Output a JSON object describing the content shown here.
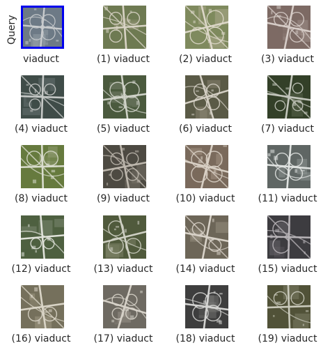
{
  "query_label": "Query",
  "items": [
    {
      "caption": "viaduct",
      "is_query": true,
      "palette": [
        "#6d7a86",
        "#9aa3ab",
        "#c9ccce"
      ]
    },
    {
      "caption": "(1) viaduct",
      "palette": [
        "#6e7a52",
        "#a59f84",
        "#d8d3c5"
      ]
    },
    {
      "caption": "(2) viaduct",
      "palette": [
        "#7f8a5e",
        "#b3ad94",
        "#dcd7c8"
      ]
    },
    {
      "caption": "(3) viaduct",
      "palette": [
        "#7d6a64",
        "#a5948d",
        "#d6ccc7"
      ]
    },
    {
      "caption": "(4) viaduct",
      "palette": [
        "#3f4c48",
        "#6f7a79",
        "#c6c9c7"
      ]
    },
    {
      "caption": "(5) viaduct",
      "palette": [
        "#4b5a3e",
        "#7d8672",
        "#cfd2c8"
      ]
    },
    {
      "caption": "(6) viaduct",
      "palette": [
        "#5a5a46",
        "#918a78",
        "#d4cfc4"
      ]
    },
    {
      "caption": "(7) viaduct",
      "palette": [
        "#334028",
        "#5f6a52",
        "#c3c6bc"
      ]
    },
    {
      "caption": "(8) viaduct",
      "palette": [
        "#667a3e",
        "#9aa27c",
        "#d9dccd"
      ]
    },
    {
      "caption": "(9) viaduct",
      "palette": [
        "#4d4a42",
        "#7d776d",
        "#bdb7ad"
      ]
    },
    {
      "caption": "(10) viaduct",
      "palette": [
        "#7a6a5c",
        "#a8998a",
        "#d8cfc4"
      ]
    },
    {
      "caption": "(11) viaduct",
      "palette": [
        "#5f6664",
        "#959b99",
        "#dfe2e0"
      ]
    },
    {
      "caption": "(12) viaduct",
      "palette": [
        "#4e6040",
        "#86907a",
        "#e0e2da"
      ]
    },
    {
      "caption": "(13) viaduct",
      "palette": [
        "#505a3c",
        "#85896f",
        "#cfd0c4"
      ]
    },
    {
      "caption": "(14) viaduct",
      "palette": [
        "#6d6658",
        "#9e9688",
        "#d8d2c8"
      ]
    },
    {
      "caption": "(15) viaduct",
      "palette": [
        "#3d3c40",
        "#6e6a70",
        "#b8b4b8"
      ]
    },
    {
      "caption": "(16) viaduct",
      "palette": [
        "#75705c",
        "#a8a18c",
        "#d9d4c6"
      ]
    },
    {
      "caption": "(17) viaduct",
      "palette": [
        "#6e6a62",
        "#a09a90",
        "#d6d1c8"
      ]
    },
    {
      "caption": "(18) viaduct",
      "palette": [
        "#3e3e3e",
        "#7a7a78",
        "#d4d4d2"
      ]
    },
    {
      "caption": "(19) viaduct",
      "palette": [
        "#515238",
        "#86866e",
        "#cacabc"
      ]
    }
  ]
}
